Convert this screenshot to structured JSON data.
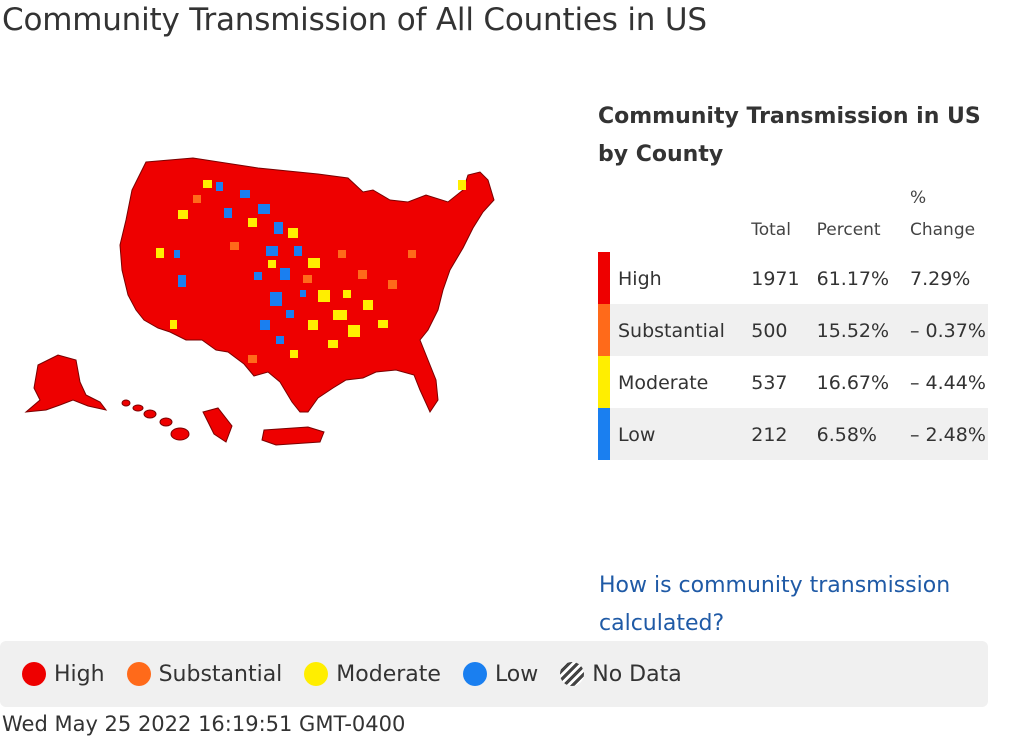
{
  "page": {
    "title": "Community Transmission of All Counties in US",
    "timestamp": "Wed May 25 2022 16:19:51 GMT-0400"
  },
  "colors": {
    "high": "#ee0000",
    "substantial": "#ff6a1a",
    "moderate": "#ffee00",
    "low": "#1a7ff0"
  },
  "summary": {
    "title": "Community Transmission in US by County",
    "headers": {
      "total": "Total",
      "percent": "Percent",
      "change": "% Change"
    },
    "rows": [
      {
        "level": "High",
        "total": "1971",
        "percent": "61.17%",
        "change": "7.29%"
      },
      {
        "level": "Substantial",
        "total": "500",
        "percent": "15.52%",
        "change": "– 0.37%"
      },
      {
        "level": "Moderate",
        "total": "537",
        "percent": "16.67%",
        "change": "– 4.44%"
      },
      {
        "level": "Low",
        "total": "212",
        "percent": "6.58%",
        "change": "– 2.48%"
      }
    ],
    "link": "How is community transmission calculated?"
  },
  "legend": {
    "items": [
      {
        "label": "High"
      },
      {
        "label": "Substantial"
      },
      {
        "label": "Moderate"
      },
      {
        "label": "Low"
      },
      {
        "label": "No Data"
      }
    ]
  }
}
